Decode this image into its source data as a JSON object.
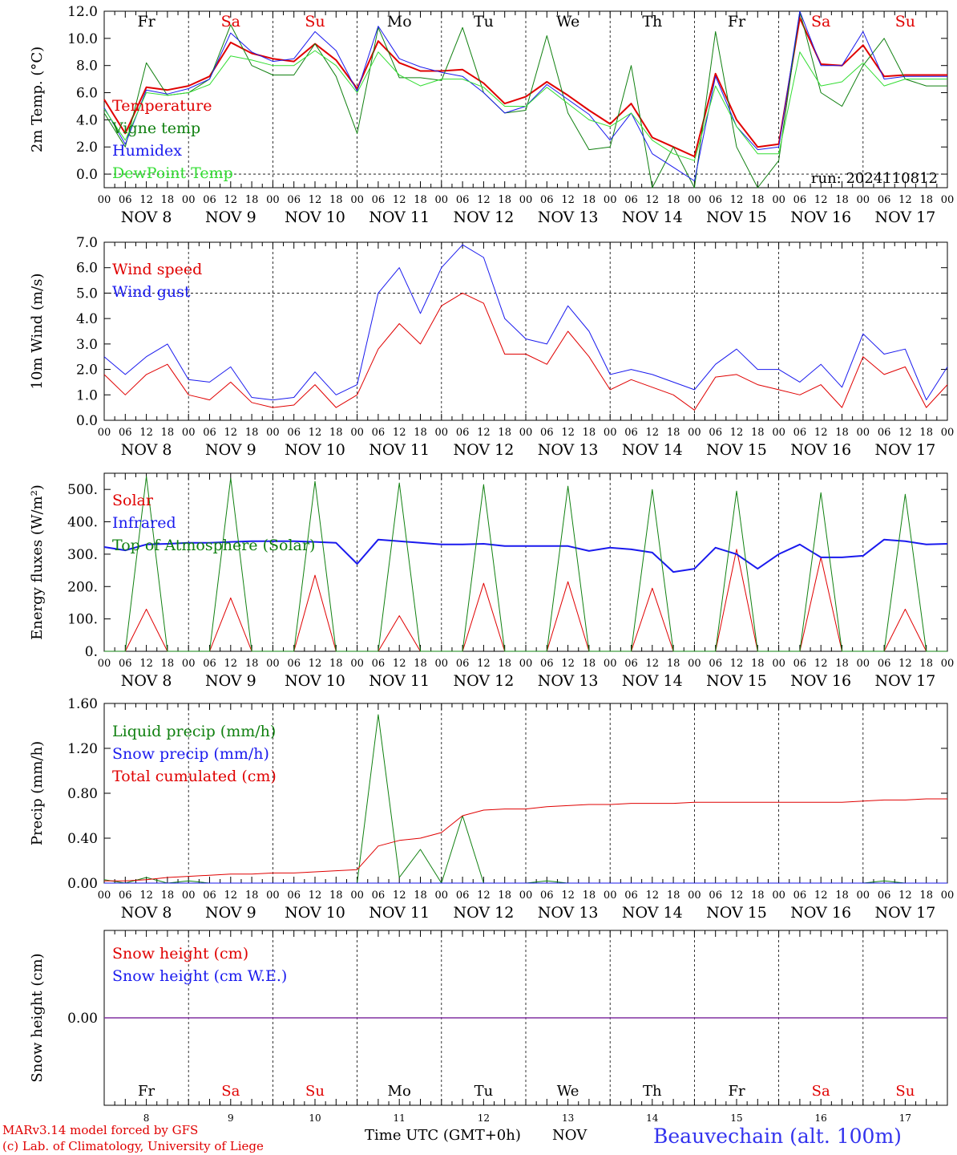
{
  "days": [
    "8",
    "9",
    "10",
    "11",
    "12",
    "13",
    "14",
    "15",
    "16",
    "17"
  ],
  "day_labels": [
    "NOV  8",
    "NOV  9",
    "NOV 10",
    "NOV 11",
    "NOV 12",
    "NOV 13",
    "NOV 14",
    "NOV 15",
    "NOV 16",
    "NOV 17"
  ],
  "weekdays": [
    "Fr",
    "Sa",
    "Su",
    "Mo",
    "Tu",
    "We",
    "Th",
    "Fr",
    "Sa",
    "Su"
  ],
  "weekday_colors": [
    "#000000",
    "#e00000",
    "#e00000",
    "#000000",
    "#000000",
    "#000000",
    "#000000",
    "#000000",
    "#e00000",
    "#e00000"
  ],
  "hour_ticks": [
    "00",
    "06",
    "12",
    "18"
  ],
  "final_tick": "00",
  "run_label": "run: 2024110812",
  "footer": {
    "credit1": "MARv3.14 model forced by GFS",
    "credit2": "(c) Lab. of Climatology, University of Liege",
    "xlabel": "Time UTC (GMT+0h)",
    "month": "NOV",
    "station": "Beauvechain (alt. 100m)"
  },
  "colors": {
    "red": "#e00000",
    "green": "#108010",
    "blue": "#1a1aee",
    "lightgreen": "#33dd33",
    "purple": "#8030a0"
  },
  "chart_data": [
    {
      "type": "line",
      "ylabel": "2m Temp. (°C)",
      "ylim": [
        -1,
        12
      ],
      "yticks": [
        "12.0",
        "10.0",
        "8.0",
        "6.0",
        "4.0",
        "2.0",
        "0.0"
      ],
      "ytick_values": [
        12,
        10,
        8,
        6,
        4,
        2,
        0
      ],
      "dashed_y": [
        0
      ],
      "x_days": [
        0,
        0.25,
        0.5,
        0.75,
        1,
        1.25,
        1.5,
        1.75,
        2,
        2.25,
        2.5,
        2.75,
        3,
        3.25,
        3.5,
        3.75,
        4,
        4.25,
        4.5,
        4.75,
        5,
        5.25,
        5.5,
        5.75,
        6,
        6.25,
        6.5,
        6.75,
        7,
        7.25,
        7.5,
        7.75,
        8,
        8.25,
        8.5,
        8.75,
        9,
        9.25,
        9.5,
        9.75,
        10
      ],
      "series": [
        {
          "name": "Temperature",
          "color": "#e00000",
          "width": 2,
          "values": [
            5.5,
            3.0,
            6.4,
            6.2,
            6.5,
            7.2,
            9.7,
            8.9,
            8.5,
            8.3,
            9.6,
            8.4,
            6.3,
            9.8,
            8.2,
            7.6,
            7.6,
            7.7,
            6.7,
            5.2,
            5.7,
            6.8,
            5.8,
            4.7,
            3.7,
            5.2,
            2.7,
            2.0,
            1.3,
            7.4,
            4.0,
            2.0,
            2.2,
            11.5,
            8.1,
            8.0,
            9.5,
            7.2,
            7.3,
            7.3,
            7.3
          ]
        },
        {
          "name": "Vigne temp",
          "color": "#108010",
          "width": 1,
          "values": [
            4.5,
            2.0,
            8.2,
            5.8,
            6.0,
            7.0,
            11.0,
            8.0,
            7.3,
            7.3,
            9.6,
            7.2,
            3.0,
            10.8,
            7.1,
            7.1,
            6.9,
            10.8,
            6.0,
            4.5,
            4.7,
            10.2,
            4.5,
            1.8,
            2.0,
            8.0,
            -1.0,
            2.0,
            -1.0,
            10.5,
            2.0,
            -1.0,
            1.0,
            12.0,
            6.0,
            5.0,
            8.0,
            10.0,
            7.0,
            6.5,
            6.5
          ]
        },
        {
          "name": "Humidex",
          "color": "#1a1aee",
          "width": 1,
          "values": [
            4.9,
            2.2,
            6.2,
            5.9,
            6.3,
            7.0,
            10.4,
            9.0,
            8.3,
            8.5,
            10.5,
            9.1,
            6.1,
            10.9,
            8.5,
            7.9,
            7.5,
            7.2,
            6.0,
            4.5,
            5.0,
            6.6,
            5.5,
            4.4,
            2.5,
            4.5,
            1.5,
            0.5,
            -0.5,
            7.2,
            3.5,
            1.8,
            2.0,
            12.0,
            8.0,
            8.0,
            10.5,
            7.0,
            7.2,
            7.2,
            7.2
          ]
        },
        {
          "name": "DewPoint Temp",
          "color": "#33dd33",
          "width": 1,
          "values": [
            4.8,
            2.5,
            6.0,
            5.8,
            6.0,
            6.6,
            8.7,
            8.4,
            8.0,
            8.0,
            9.1,
            8.0,
            6.0,
            9.0,
            7.3,
            6.5,
            7.0,
            7.0,
            6.4,
            5.0,
            5.0,
            6.4,
            5.2,
            4.0,
            3.5,
            4.5,
            2.5,
            1.5,
            1.0,
            6.5,
            3.5,
            1.5,
            1.5,
            9.0,
            6.5,
            6.8,
            8.2,
            6.5,
            7.0,
            7.0,
            7.0
          ]
        }
      ]
    },
    {
      "type": "line",
      "ylabel": "10m Wind (m/s)",
      "ylim": [
        0,
        7
      ],
      "yticks": [
        "7.0",
        "6.0",
        "5.0",
        "4.0",
        "3.0",
        "2.0",
        "1.0",
        "0.0"
      ],
      "ytick_values": [
        7,
        6,
        5,
        4,
        3,
        2,
        1,
        0
      ],
      "dashed_y": [
        5
      ],
      "x_days": [
        0,
        0.25,
        0.5,
        0.75,
        1,
        1.25,
        1.5,
        1.75,
        2,
        2.25,
        2.5,
        2.75,
        3,
        3.25,
        3.5,
        3.75,
        4,
        4.25,
        4.5,
        4.75,
        5,
        5.25,
        5.5,
        5.75,
        6,
        6.25,
        6.5,
        6.75,
        7,
        7.25,
        7.5,
        7.75,
        8,
        8.25,
        8.5,
        8.75,
        9,
        9.25,
        9.5,
        9.75,
        10
      ],
      "series": [
        {
          "name": "Wind speed",
          "color": "#e00000",
          "width": 1,
          "values": [
            1.8,
            1.0,
            1.8,
            2.2,
            1.0,
            0.8,
            1.5,
            0.7,
            0.5,
            0.6,
            1.4,
            0.5,
            1.0,
            2.8,
            3.8,
            3.0,
            4.5,
            5.0,
            4.6,
            2.6,
            2.6,
            2.2,
            3.5,
            2.5,
            1.2,
            1.6,
            1.3,
            1.0,
            0.4,
            1.7,
            1.8,
            1.4,
            1.2,
            1.0,
            1.4,
            0.5,
            2.5,
            1.8,
            2.1,
            0.5,
            1.4
          ]
        },
        {
          "name": "Wind gust",
          "color": "#1a1aee",
          "width": 1,
          "values": [
            2.5,
            1.8,
            2.5,
            3.0,
            1.6,
            1.5,
            2.1,
            0.9,
            0.8,
            0.9,
            1.9,
            1.0,
            1.4,
            5.0,
            6.0,
            4.2,
            6.0,
            6.9,
            6.4,
            4.0,
            3.2,
            3.0,
            4.5,
            3.5,
            1.8,
            2.0,
            1.8,
            1.5,
            1.2,
            2.2,
            2.8,
            2.0,
            2.0,
            1.5,
            2.2,
            1.3,
            3.4,
            2.6,
            2.8,
            0.8,
            2.1
          ]
        }
      ]
    },
    {
      "type": "line",
      "ylabel": "Energy fluxes (W/m²)",
      "ylim": [
        0,
        550
      ],
      "yticks": [
        "500.",
        "400.",
        "300.",
        "200.",
        "100.",
        "0."
      ],
      "ytick_values": [
        500,
        400,
        300,
        200,
        100,
        0
      ],
      "dashed_y": [],
      "x_days": [
        0,
        0.25,
        0.5,
        0.75,
        1,
        1.25,
        1.5,
        1.75,
        2,
        2.25,
        2.5,
        2.75,
        3,
        3.25,
        3.5,
        3.75,
        4,
        4.25,
        4.5,
        4.75,
        5,
        5.25,
        5.5,
        5.75,
        6,
        6.25,
        6.5,
        6.75,
        7,
        7.25,
        7.5,
        7.75,
        8,
        8.25,
        8.5,
        8.75,
        9,
        9.25,
        9.5,
        9.75,
        10
      ],
      "series": [
        {
          "name": "Solar",
          "color": "#e00000",
          "width": 1,
          "values": [
            0,
            0,
            130,
            0,
            0,
            0,
            165,
            0,
            0,
            0,
            235,
            0,
            0,
            0,
            110,
            0,
            0,
            0,
            210,
            0,
            0,
            0,
            215,
            0,
            0,
            0,
            195,
            0,
            0,
            0,
            315,
            0,
            0,
            0,
            290,
            0,
            0,
            0,
            130,
            0,
            0
          ]
        },
        {
          "name": "Infrared",
          "color": "#1a1aee",
          "width": 2,
          "values": [
            322,
            312,
            330,
            332,
            335,
            335,
            338,
            340,
            340,
            340,
            338,
            335,
            270,
            345,
            340,
            335,
            330,
            330,
            332,
            325,
            325,
            325,
            325,
            310,
            320,
            315,
            305,
            245,
            255,
            320,
            300,
            255,
            300,
            330,
            290,
            290,
            295,
            345,
            340,
            330,
            332
          ]
        },
        {
          "name": "Top of Atmosphere (Solar)",
          "color": "#108010",
          "width": 1,
          "values": [
            0,
            0,
            540,
            0,
            0,
            0,
            535,
            0,
            0,
            0,
            525,
            0,
            0,
            0,
            520,
            0,
            0,
            0,
            515,
            0,
            0,
            0,
            510,
            0,
            0,
            0,
            500,
            0,
            0,
            0,
            495,
            0,
            0,
            0,
            490,
            0,
            0,
            0,
            485,
            0,
            0
          ]
        }
      ]
    },
    {
      "type": "line",
      "ylabel": "Precip (mm/h)",
      "ylim": [
        0,
        1.6
      ],
      "yticks": [
        "1.60",
        "1.20",
        "0.80",
        "0.40",
        "0.00"
      ],
      "ytick_values": [
        1.6,
        1.2,
        0.8,
        0.4,
        0.0
      ],
      "dashed_y": [],
      "x_days": [
        0,
        0.25,
        0.5,
        0.75,
        1,
        1.25,
        1.5,
        1.75,
        2,
        2.25,
        2.5,
        2.75,
        3,
        3.25,
        3.5,
        3.75,
        4,
        4.25,
        4.5,
        4.75,
        5,
        5.25,
        5.5,
        5.75,
        6,
        6.25,
        6.5,
        6.75,
        7,
        7.25,
        7.5,
        7.75,
        8,
        8.25,
        8.5,
        8.75,
        9,
        9.25,
        9.5,
        9.75,
        10
      ],
      "series": [
        {
          "name": "Liquid precip (mm/h)",
          "color": "#108010",
          "width": 1,
          "values": [
            0.03,
            0.0,
            0.05,
            0.0,
            0.02,
            0.0,
            0.0,
            0.0,
            0.0,
            0.0,
            0.0,
            0.0,
            0.0,
            1.5,
            0.05,
            0.3,
            0.0,
            0.6,
            0.0,
            0.0,
            0.0,
            0.02,
            0.0,
            0.0,
            0.0,
            0.0,
            0.0,
            0.0,
            0.0,
            0.0,
            0.0,
            0.0,
            0.0,
            0.0,
            0.0,
            0.0,
            0.0,
            0.02,
            0.0,
            0.0,
            0.0
          ]
        },
        {
          "name": "Snow precip (mm/h)",
          "color": "#1a1aee",
          "width": 1,
          "values": [
            0,
            0,
            0,
            0,
            0,
            0,
            0,
            0,
            0,
            0,
            0,
            0,
            0,
            0,
            0,
            0,
            0,
            0,
            0,
            0,
            0,
            0,
            0,
            0,
            0,
            0,
            0,
            0,
            0,
            0,
            0,
            0,
            0,
            0,
            0,
            0,
            0,
            0,
            0,
            0,
            0
          ]
        },
        {
          "name": "Total cumulated (cm)",
          "color": "#e00000",
          "width": 1,
          "values": [
            0.02,
            0.02,
            0.03,
            0.05,
            0.06,
            0.07,
            0.08,
            0.08,
            0.09,
            0.09,
            0.1,
            0.11,
            0.12,
            0.33,
            0.38,
            0.4,
            0.45,
            0.6,
            0.65,
            0.66,
            0.66,
            0.68,
            0.69,
            0.7,
            0.7,
            0.71,
            0.71,
            0.71,
            0.72,
            0.72,
            0.72,
            0.72,
            0.72,
            0.72,
            0.72,
            0.72,
            0.73,
            0.74,
            0.74,
            0.75,
            0.75
          ]
        }
      ]
    },
    {
      "type": "line",
      "ylabel": "Snow height (cm)",
      "ylim": [
        -1,
        1
      ],
      "yticks": [
        "0.00"
      ],
      "ytick_values": [
        0
      ],
      "dashed_y": [],
      "x_days": [
        0,
        10
      ],
      "series": [
        {
          "name": "Snow height (cm)",
          "color": "#e00000",
          "width": 1,
          "values": [
            0,
            0
          ]
        },
        {
          "name": "Snow height (cm W.E.)",
          "color": "#1a1aee",
          "width": 1,
          "values": [
            0,
            0
          ]
        }
      ]
    }
  ]
}
